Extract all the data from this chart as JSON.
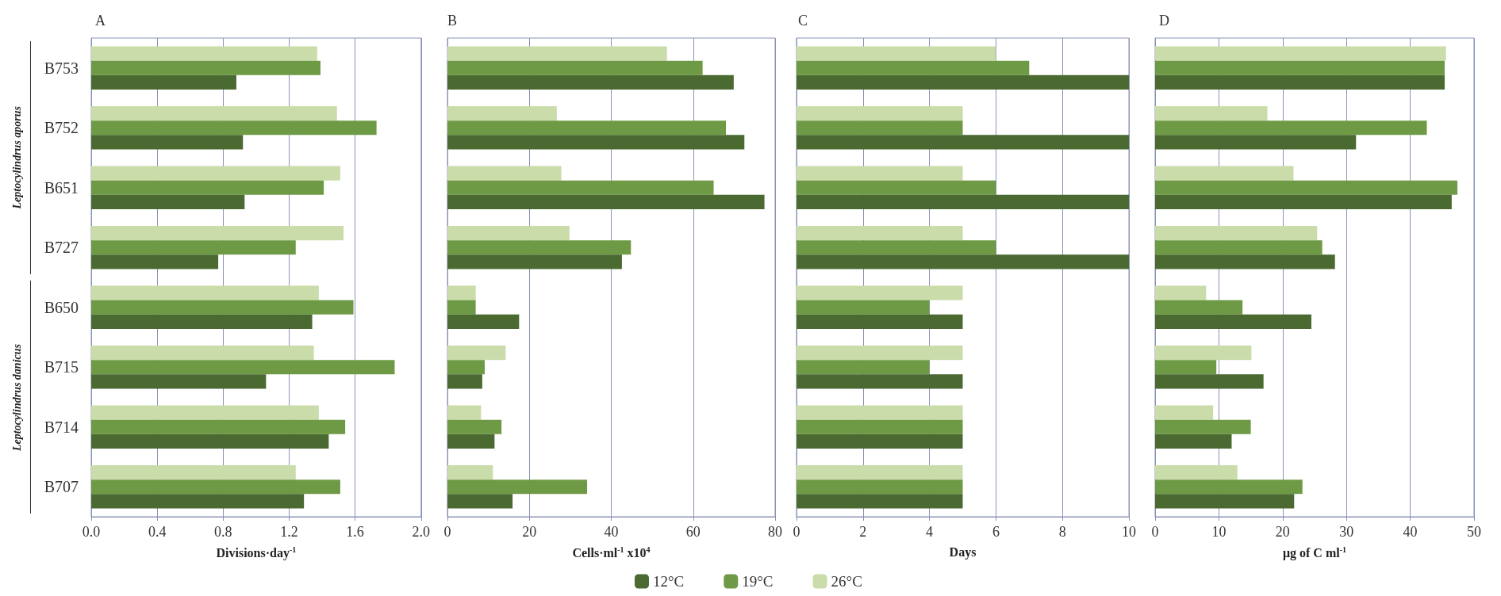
{
  "chart_data": [
    {
      "type": "bar",
      "orientation": "horizontal",
      "title": "A",
      "xlabel": "Divisions·day$^{-1}$",
      "categories": [
        "B753",
        "B752",
        "B651",
        "B727",
        "B650",
        "B715",
        "B714",
        "B707"
      ],
      "series": [
        {
          "color": "#4a6a32",
          "values": [
            0.88,
            0.92,
            0.93,
            0.77,
            1.34,
            1.06,
            1.44,
            1.29
          ]
        },
        {
          "color": "#6f9a45",
          "values": [
            1.39,
            1.73,
            1.41,
            1.24,
            1.59,
            1.84,
            1.54,
            1.51
          ]
        },
        {
          "color": "#c9dcaa",
          "values": [
            1.37,
            1.49,
            1.51,
            1.53,
            1.38,
            1.35,
            1.38,
            1.24
          ]
        }
      ],
      "xlim": [
        0,
        2
      ],
      "xticks": [
        {
          "value": 0,
          "label": "0.0"
        },
        0.4,
        0.8,
        1.2,
        1.6,
        {
          "value": 2,
          "label": "2.0"
        }
      ],
      "grid": "x",
      "annotations": [
        "Leptocylindrus aporus",
        "Leptocylindrus danicus"
      ]
    },
    {
      "type": "bar",
      "orientation": "horizontal",
      "title": "B",
      "xlabel": "Cells·ml$^{-1}$ x10$^{4}$",
      "categories": [
        null,
        null,
        null,
        null,
        null,
        null,
        null,
        null
      ],
      "series": [
        {
          "name": "12°C",
          "color": "#4a6a32",
          "values": [
            69.9,
            72.5,
            77.4,
            42.6,
            17.5,
            8.5,
            11.5,
            15.9
          ]
        },
        {
          "name": "19°C",
          "color": "#6f9a45",
          "values": [
            62.3,
            68,
            65,
            44.8,
            6.9,
            9.1,
            13.2,
            34.1
          ]
        },
        {
          "name": "26°C",
          "color": "#c9dcaa",
          "values": [
            53.6,
            26.7,
            27.8,
            29.8,
            6.9,
            14.2,
            8.2,
            11.1
          ]
        }
      ],
      "xlim": [
        0,
        80
      ],
      "xticks": [
        0,
        20,
        40,
        60,
        80
      ],
      "grid": "x",
      "legend": "bottom"
    },
    {
      "type": "bar",
      "orientation": "horizontal",
      "title": "C",
      "xlabel": "Days",
      "categories": [
        null,
        null,
        null,
        null,
        null,
        null,
        null,
        null
      ],
      "series": [
        {
          "color": "#4a6a32",
          "values": [
            10,
            10,
            10,
            10,
            5,
            5,
            5,
            5
          ]
        },
        {
          "color": "#6f9a45",
          "values": [
            7,
            5,
            6,
            6,
            4,
            4,
            5,
            5
          ]
        },
        {
          "color": "#c9dcaa",
          "values": [
            6,
            5,
            5,
            5,
            5,
            5,
            5,
            5
          ]
        }
      ],
      "xlim": [
        0,
        10
      ],
      "xticks": [
        0,
        2,
        4,
        6,
        8,
        10
      ],
      "grid": "x"
    },
    {
      "type": "bar",
      "orientation": "horizontal",
      "title": "D",
      "xlabel": "μg of C ml$^{-1}$",
      "categories": [
        null,
        null,
        null,
        null,
        null,
        null,
        null,
        null
      ],
      "series": [
        {
          "color": "#4a6a32",
          "values": [
            45.4,
            31.5,
            46.5,
            28.2,
            24.5,
            17,
            12,
            21.8
          ]
        },
        {
          "color": "#6f9a45",
          "values": [
            45.4,
            42.6,
            47.4,
            26.2,
            13.7,
            9.6,
            15,
            23.1
          ]
        },
        {
          "color": "#c9dcaa",
          "values": [
            45.6,
            17.6,
            21.7,
            25.4,
            8,
            15.1,
            9.1,
            12.9
          ]
        }
      ],
      "xlim": [
        0,
        50
      ],
      "xticks": [
        0,
        10,
        20,
        30,
        40,
        50
      ],
      "grid": "x"
    }
  ]
}
